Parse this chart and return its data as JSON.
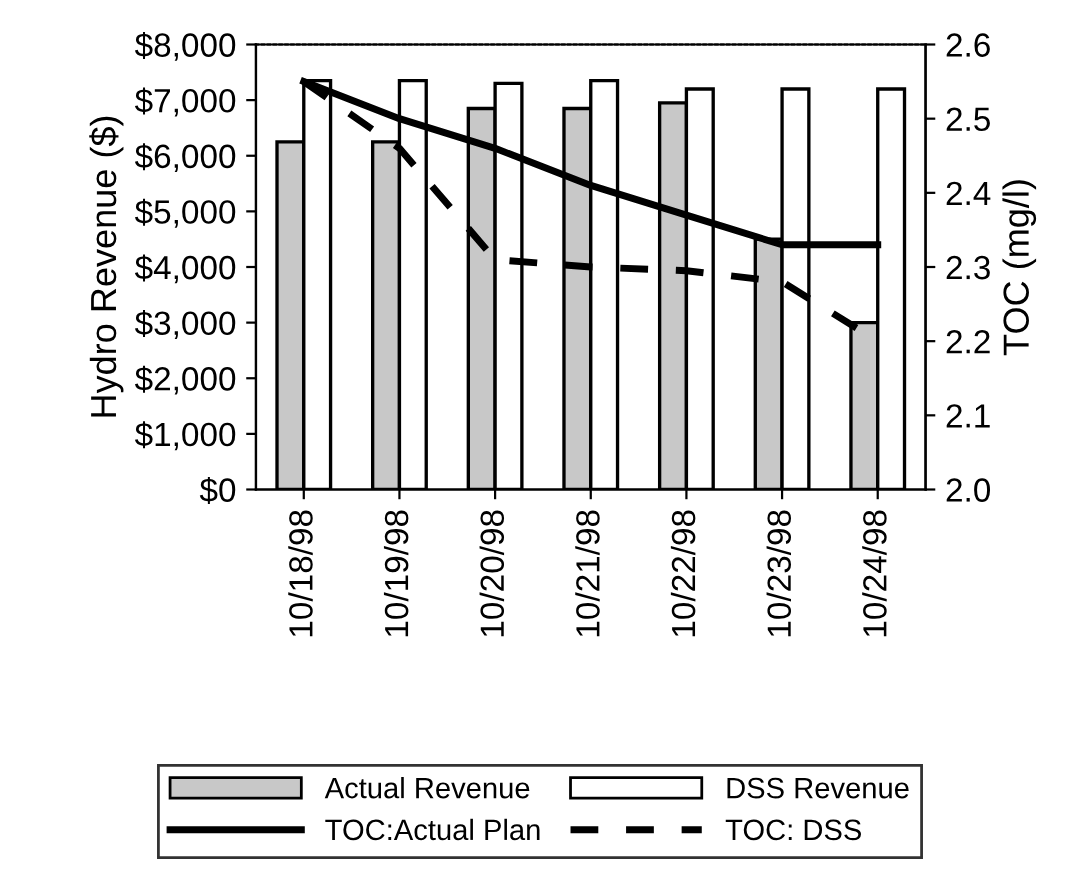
{
  "chart_data": {
    "type": "bar",
    "ylabel": "Hydro Revenue ($)",
    "y2label": "TOC (mg/l)",
    "categories": [
      "10/18/98",
      "10/19/98",
      "10/20/98",
      "10/21/98",
      "10/22/98",
      "10/23/98",
      "10/24/98"
    ],
    "series": [
      {
        "name": "Actual Revenue",
        "color": "#c8c8c8",
        "values": [
          6250,
          6250,
          6850,
          6850,
          6950,
          4500,
          3000
        ]
      },
      {
        "name": "DSS Revenue",
        "color": "#ffffff",
        "values": [
          7350,
          7350,
          7300,
          7350,
          7200,
          7200,
          7200
        ]
      },
      {
        "name": "TOC:Actual Plan",
        "type": "line",
        "axis": "y2",
        "color": "#000000",
        "line_style": "solid",
        "values": [
          2.55,
          2.5,
          2.46,
          2.41,
          2.37,
          2.33,
          2.33
        ]
      },
      {
        "name": "TOC: DSS",
        "type": "line",
        "axis": "y2",
        "color": "#000000",
        "line_style": "dashed",
        "values": [
          2.55,
          2.46,
          2.31,
          2.3,
          2.295,
          2.28,
          2.2
        ]
      }
    ],
    "ylim": [
      0,
      8000
    ],
    "yticks": [
      {
        "value": 0,
        "label": "$0"
      },
      {
        "value": 1000,
        "label": "$1,000"
      },
      {
        "value": 2000,
        "label": "$2,000"
      },
      {
        "value": 3000,
        "label": "$3,000"
      },
      {
        "value": 4000,
        "label": "$4,000"
      },
      {
        "value": 5000,
        "label": "$5,000"
      },
      {
        "value": 6000,
        "label": "$6,000"
      },
      {
        "value": 7000,
        "label": "$7,000"
      },
      {
        "value": 8000,
        "label": "$8,000"
      }
    ],
    "y2lim": [
      2.0,
      2.6
    ],
    "y2ticks": [
      {
        "value": 2.0,
        "label": "2.0"
      },
      {
        "value": 2.1,
        "label": "2.1"
      },
      {
        "value": 2.2,
        "label": "2.2"
      },
      {
        "value": 2.3,
        "label": "2.3"
      },
      {
        "value": 2.4,
        "label": "2.4"
      },
      {
        "value": 2.5,
        "label": "2.5"
      },
      {
        "value": 2.6,
        "label": "2.6"
      }
    ],
    "legend": "bottom",
    "grid": false
  }
}
